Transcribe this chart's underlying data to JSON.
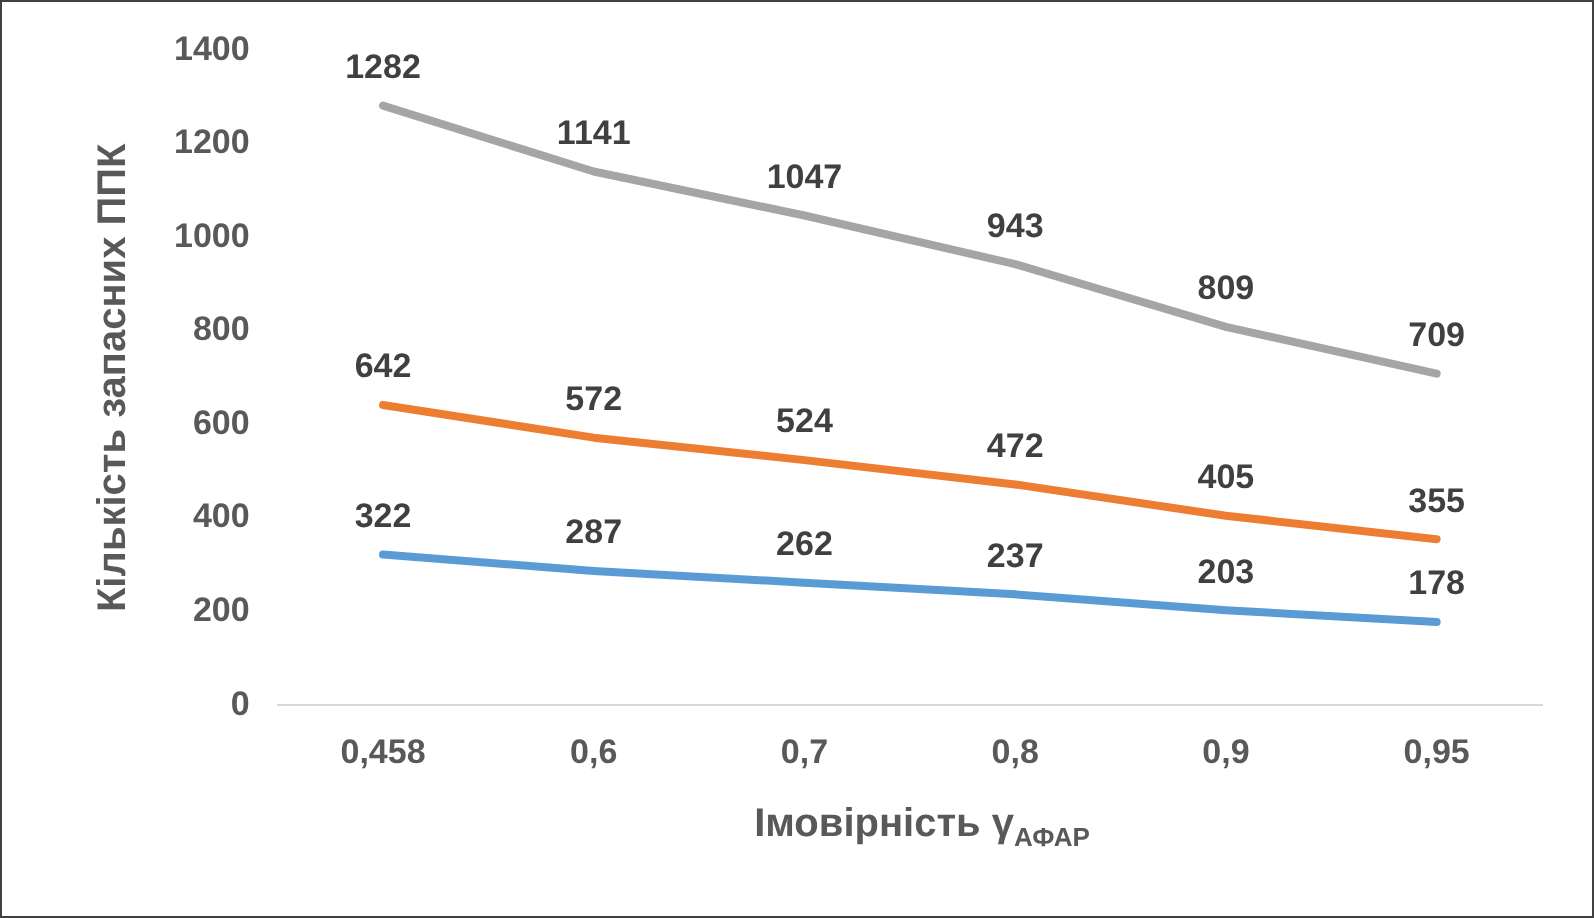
{
  "chart_data": {
    "type": "line",
    "xlabel": "Імовірність γ$_{АФАР}$",
    "ylabel": "Кількість запасних ППК",
    "categories": [
      "0,458",
      "0,6",
      "0,7",
      "0,8",
      "0,9",
      "0,95"
    ],
    "series": [
      {
        "color": "#5b9bd5",
        "values": [
          322,
          287,
          262,
          237,
          203,
          178
        ]
      },
      {
        "color": "#ed7d31",
        "values": [
          642,
          572,
          524,
          472,
          405,
          355
        ]
      },
      {
        "color": "#a5a5a5",
        "values": [
          1282,
          1141,
          1047,
          943,
          809,
          709
        ]
      }
    ],
    "ylim": [
      0,
      1400
    ],
    "yticks": [
      0,
      200,
      400,
      600,
      800,
      1000,
      1200,
      1400
    ],
    "grid": false,
    "legend": false,
    "marker": "none",
    "line_style": "solid",
    "data_labels": true
  }
}
